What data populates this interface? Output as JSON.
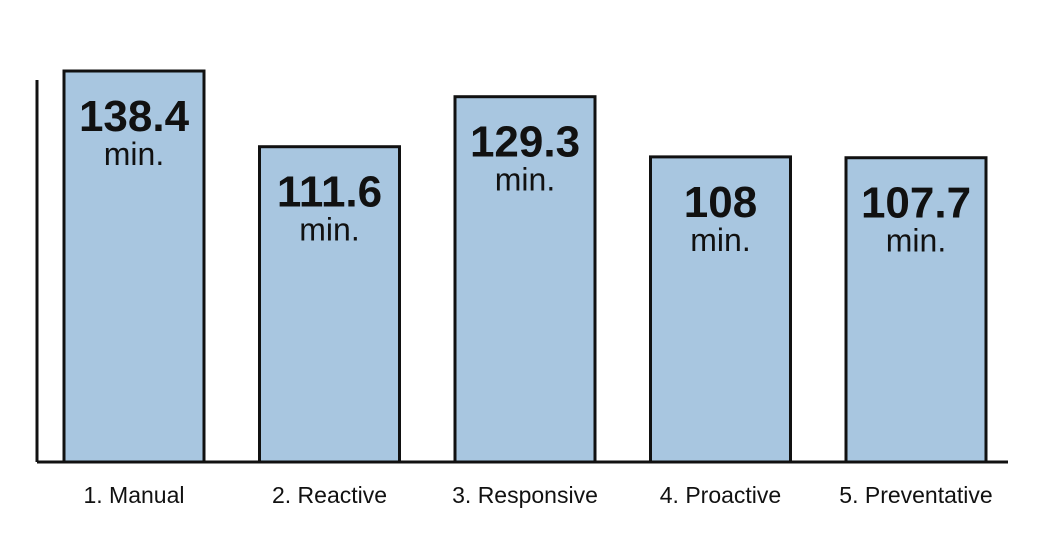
{
  "chart_data": {
    "type": "bar",
    "categories": [
      "1. Manual",
      "2. Reactive",
      "3. Responsive",
      "4. Proactive",
      "5. Preventative"
    ],
    "values": [
      138.4,
      111.6,
      129.3,
      108,
      107.7
    ],
    "value_labels": [
      "138.4",
      "111.6",
      "129.3",
      "108",
      "107.7"
    ],
    "unit": "min.",
    "ylim": [
      0,
      138.4
    ],
    "grid": false,
    "legend": "none",
    "colors": {
      "bar": "#a8c6e0",
      "outline": "#111111"
    }
  }
}
